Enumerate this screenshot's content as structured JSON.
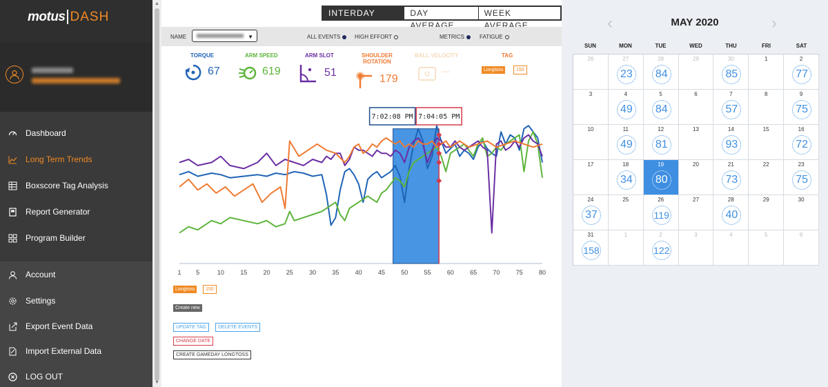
{
  "sidebar": {
    "logo_motus": "motus",
    "logo_dash": "DASH",
    "nav": [
      {
        "label": "Dashboard",
        "icon": "dashboard-icon"
      },
      {
        "label": "Long Term Trends",
        "icon": "trends-icon",
        "active": true
      },
      {
        "label": "Boxscore Tag Analysis",
        "icon": "boxscore-icon"
      },
      {
        "label": "Report Generator",
        "icon": "report-icon"
      },
      {
        "label": "Program Builder",
        "icon": "program-icon"
      }
    ],
    "account_nav": [
      {
        "label": "Account",
        "icon": "account-icon"
      },
      {
        "label": "Settings",
        "icon": "gear-icon"
      },
      {
        "label": "Export Event Data",
        "icon": "export-icon"
      },
      {
        "label": "Import External Data",
        "icon": "import-icon"
      },
      {
        "label": "LOG OUT",
        "icon": "logout-icon"
      }
    ]
  },
  "tabs": [
    {
      "label": "INTERDAY DATA",
      "active": true
    },
    {
      "label": "DAY AVERAGE"
    },
    {
      "label": "WEEK AVERAGE"
    }
  ],
  "filters": {
    "name_label": "NAME",
    "all_events": "ALL EVENTS",
    "high_effort": "HIGH EFFORT",
    "metrics": "METRICS",
    "fatigue": "FATIGUE"
  },
  "metrics": {
    "torque": {
      "label": "TORQUE",
      "value": "67",
      "color": "#1f63b5"
    },
    "arm_speed": {
      "label": "ARM SPEED",
      "value": "619",
      "color": "#5db43a"
    },
    "arm_slot": {
      "label": "ARM SLOT",
      "value": "51",
      "color": "#6a2ea3"
    },
    "shoulder_rotation": {
      "label_1": "SHOULDER",
      "label_2": "ROTATION",
      "value": "179",
      "color": "#ef7a31"
    },
    "ball_velocity": {
      "label": "BALL VELOCITY",
      "value": "—",
      "color": "#f4d9b8"
    },
    "tag": {
      "label": "TAG",
      "longtoss": "Longtoss",
      "count": "150"
    }
  },
  "chart_data": {
    "type": "line",
    "x_ticks": [
      1,
      5,
      10,
      15,
      20,
      25,
      30,
      35,
      40,
      45,
      50,
      55,
      60,
      65,
      70,
      75,
      80
    ],
    "xlim": [
      1,
      80
    ],
    "selection": {
      "start": 47.5,
      "end": 57.5,
      "start_time": "7:02:08 PM",
      "end_time": "7:04:05 PM"
    },
    "series": [
      {
        "color": "#1f63b5",
        "x": [
          1,
          3,
          5,
          8,
          10,
          12,
          15,
          18,
          20,
          22,
          24,
          26,
          28,
          30,
          32,
          33,
          34,
          35,
          36,
          37,
          38,
          39,
          40,
          41,
          42,
          43,
          44,
          45,
          46,
          47,
          48,
          49,
          50,
          51,
          52,
          53,
          54,
          55,
          56,
          57,
          58,
          59,
          60,
          61,
          62,
          63,
          64,
          65,
          66,
          67,
          68,
          69,
          70,
          71,
          72,
          73,
          74,
          75,
          76,
          77,
          78,
          79,
          80
        ],
        "y": [
          58,
          60,
          57,
          59,
          58,
          56,
          57,
          58,
          57,
          59,
          58,
          60,
          59,
          57,
          58,
          45,
          25,
          30,
          48,
          60,
          62,
          58,
          52,
          40,
          55,
          58,
          60,
          56,
          58,
          60,
          64,
          57,
          40,
          62,
          78,
          88,
          80,
          62,
          70,
          90,
          80,
          72,
          75,
          78,
          70,
          74,
          72,
          68,
          76,
          80,
          75,
          72,
          70,
          86,
          78,
          84,
          82,
          74,
          88,
          90,
          86,
          82,
          66
        ]
      },
      {
        "color": "#5db43a",
        "x": [
          1,
          3,
          5,
          8,
          10,
          12,
          15,
          18,
          20,
          22,
          24,
          25,
          26,
          28,
          30,
          32,
          33,
          34,
          35,
          36,
          37,
          38,
          39,
          40,
          41,
          42,
          43,
          44,
          45,
          46,
          47,
          48,
          49,
          50,
          51,
          52,
          53,
          54,
          55,
          56,
          57,
          58,
          59,
          60,
          61,
          62,
          63,
          64,
          65,
          66,
          67,
          68,
          69,
          70,
          71,
          72,
          73,
          74,
          75,
          76,
          77,
          78,
          79,
          80
        ],
        "y": [
          20,
          24,
          22,
          28,
          26,
          30,
          28,
          26,
          28,
          24,
          26,
          34,
          28,
          30,
          32,
          34,
          36,
          38,
          40,
          32,
          28,
          36,
          38,
          40,
          42,
          44,
          42,
          40,
          46,
          48,
          52,
          56,
          54,
          50,
          60,
          66,
          68,
          70,
          72,
          74,
          76,
          70,
          60,
          72,
          74,
          76,
          78,
          74,
          70,
          78,
          82,
          70,
          72,
          76,
          74,
          78,
          80,
          82,
          84,
          60,
          80,
          86,
          78,
          56
        ]
      },
      {
        "color": "#6a2ea3",
        "x": [
          1,
          3,
          5,
          8,
          10,
          12,
          15,
          18,
          20,
          22,
          24,
          26,
          28,
          30,
          32,
          33,
          34,
          35,
          36,
          37,
          38,
          39,
          40,
          41,
          42,
          43,
          44,
          45,
          46,
          47,
          48,
          49,
          50,
          51,
          52,
          53,
          54,
          55,
          56,
          57,
          58,
          59,
          60,
          61,
          62,
          63,
          64,
          65,
          66,
          67,
          68,
          69,
          70,
          71,
          72,
          73,
          74,
          75,
          76,
          77,
          78,
          79,
          80
        ],
        "y": [
          66,
          68,
          64,
          66,
          70,
          64,
          62,
          66,
          72,
          64,
          68,
          66,
          64,
          68,
          66,
          70,
          68,
          72,
          72,
          64,
          68,
          76,
          74,
          74,
          72,
          70,
          74,
          72,
          72,
          70,
          74,
          72,
          66,
          76,
          80,
          82,
          78,
          66,
          74,
          82,
          80,
          76,
          76,
          80,
          76,
          74,
          76,
          78,
          80,
          76,
          74,
          20,
          78,
          80,
          74,
          76,
          80,
          76,
          82,
          84,
          80,
          78,
          70
        ]
      },
      {
        "color": "#ef7a31",
        "x": [
          1,
          3,
          5,
          7,
          9,
          11,
          13,
          15,
          17,
          19,
          21,
          23,
          24,
          25,
          27,
          29,
          31,
          33,
          35,
          37,
          38,
          39,
          40,
          41,
          42,
          43,
          44,
          45,
          46,
          47,
          48,
          49,
          50,
          51,
          52,
          53,
          54,
          55,
          56,
          57,
          58,
          59,
          60,
          62,
          64,
          66,
          68,
          70,
          72,
          74,
          76,
          78,
          80
        ],
        "y": [
          50,
          55,
          48,
          52,
          46,
          50,
          44,
          48,
          52,
          40,
          46,
          50,
          36,
          80,
          70,
          74,
          78,
          74,
          72,
          66,
          70,
          76,
          78,
          72,
          74,
          78,
          76,
          80,
          82,
          80,
          78,
          80,
          76,
          78,
          76,
          80,
          78,
          78,
          80,
          76,
          78,
          80,
          76,
          80,
          76,
          78,
          80,
          76,
          78,
          80,
          78,
          76,
          78
        ]
      }
    ]
  },
  "tag_buttons": {
    "longtoss": "Longtoss",
    "count": "150"
  },
  "actions": {
    "create_new": "Create new",
    "update_tag": "UPDATE TAG",
    "delete_events": "DELETE EVENTS",
    "change_date": "CHANGE DATE",
    "create_gameday": "CREATE GAMEDAY LONGTOSS"
  },
  "calendar": {
    "title": "MAY 2020",
    "days_of_week": [
      "SUN",
      "MON",
      "TUE",
      "WED",
      "THU",
      "FRI",
      "SAT"
    ],
    "weeks": [
      [
        {
          "d": "26",
          "o": true
        },
        {
          "d": "27",
          "o": true,
          "v": "23"
        },
        {
          "d": "28",
          "o": true,
          "v": "84"
        },
        {
          "d": "29",
          "o": true
        },
        {
          "d": "30",
          "o": true,
          "v": "85"
        },
        {
          "d": "1"
        },
        {
          "d": "2",
          "v": "77"
        }
      ],
      [
        {
          "d": "3"
        },
        {
          "d": "4",
          "v": "49"
        },
        {
          "d": "5",
          "v": "84"
        },
        {
          "d": "6"
        },
        {
          "d": "7",
          "v": "57"
        },
        {
          "d": "8"
        },
        {
          "d": "9",
          "v": "75"
        }
      ],
      [
        {
          "d": "10"
        },
        {
          "d": "11",
          "v": "49"
        },
        {
          "d": "12",
          "v": "81"
        },
        {
          "d": "13"
        },
        {
          "d": "14",
          "v": "93"
        },
        {
          "d": "15"
        },
        {
          "d": "16",
          "v": "72"
        }
      ],
      [
        {
          "d": "17"
        },
        {
          "d": "18",
          "v": "34"
        },
        {
          "d": "19",
          "v": "80",
          "s": true
        },
        {
          "d": "20"
        },
        {
          "d": "21",
          "v": "73"
        },
        {
          "d": "22"
        },
        {
          "d": "23",
          "v": "75"
        }
      ],
      [
        {
          "d": "24",
          "v": "37"
        },
        {
          "d": "25"
        },
        {
          "d": "26",
          "v": "119"
        },
        {
          "d": "27"
        },
        {
          "d": "28",
          "v": "40"
        },
        {
          "d": "29"
        },
        {
          "d": "30"
        }
      ],
      [
        {
          "d": "31",
          "v": "158"
        },
        {
          "d": "1",
          "o": true
        },
        {
          "d": "2",
          "o": true,
          "v": "122"
        },
        {
          "d": "3",
          "o": true
        },
        {
          "d": "4",
          "o": true
        },
        {
          "d": "5",
          "o": true
        },
        {
          "d": "6",
          "o": true
        }
      ]
    ]
  }
}
